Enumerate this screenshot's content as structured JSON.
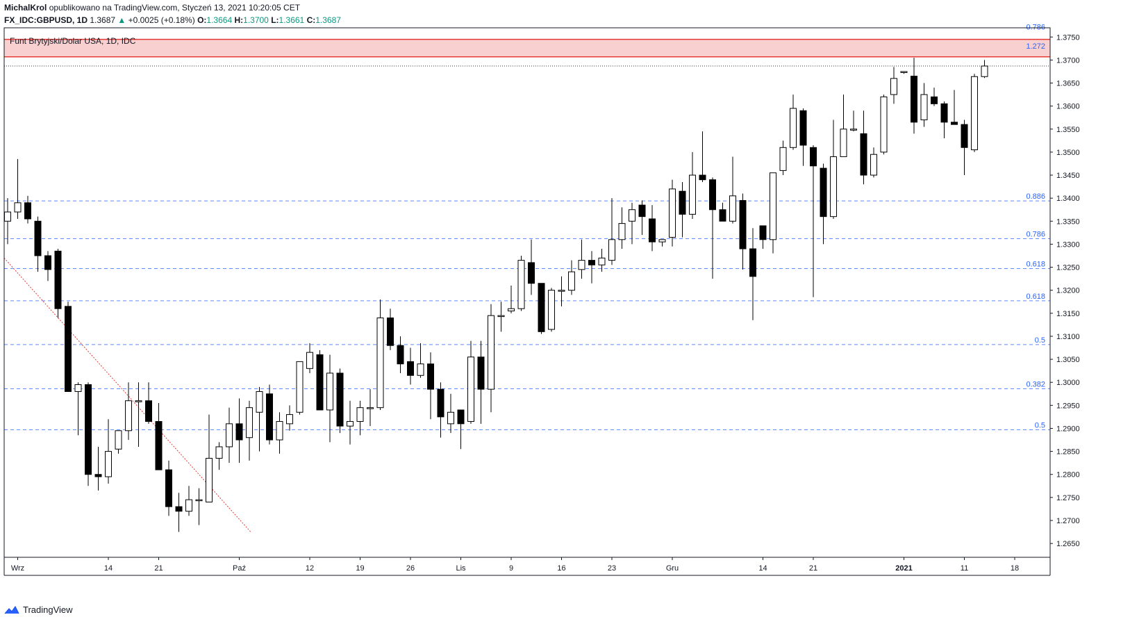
{
  "header": {
    "author": "MichalKrol",
    "published_text": "opublikowano na TradingView.com, Styczeń 13, 2021 10:20:05 CET",
    "symbol": "FX_IDC:GBPUSD, 1D",
    "last": "1.3687",
    "change_arrow": "▲",
    "change": "+0.0025 (+0.18%)",
    "o_label": "O:",
    "o_value": "1.3664",
    "h_label": "H:",
    "h_value": "1.3700",
    "l_label": "L:",
    "l_value": "1.3661",
    "c_label": "C:",
    "c_value": "1.3687"
  },
  "footer": {
    "brand": "TradingView"
  },
  "colors": {
    "up_body": "#ffffff",
    "down_body": "#000000",
    "fib_line": "#2962ff",
    "fib_label": "#2962ff",
    "zone_fill": "#f8d0d0",
    "zone_border": "#e53935",
    "trendline": "#e53935"
  },
  "chart_data": {
    "type": "candlestick",
    "title": "Funt Brytyjski/Dolar USA, 1D, IDC",
    "ylim": [
      1.262,
      1.377
    ],
    "y_ticks": [
      "1.3750",
      "1.3700",
      "1.3650",
      "1.3600",
      "1.3550",
      "1.3500",
      "1.3450",
      "1.3400",
      "1.3350",
      "1.3300",
      "1.3250",
      "1.3200",
      "1.3150",
      "1.3100",
      "1.3050",
      "1.3000",
      "1.2950",
      "1.2900",
      "1.2850",
      "1.2800",
      "1.2750",
      "1.2700",
      "1.2650"
    ],
    "x_ticks": [
      {
        "label": "Wrz",
        "bar": 1
      },
      {
        "label": "14",
        "bar": 10
      },
      {
        "label": "21",
        "bar": 15
      },
      {
        "label": "Paź",
        "bar": 23
      },
      {
        "label": "12",
        "bar": 30
      },
      {
        "label": "19",
        "bar": 35
      },
      {
        "label": "26",
        "bar": 40
      },
      {
        "label": "Lis",
        "bar": 45
      },
      {
        "label": "9",
        "bar": 50
      },
      {
        "label": "16",
        "bar": 55
      },
      {
        "label": "23",
        "bar": 60
      },
      {
        "label": "Gru",
        "bar": 66
      },
      {
        "label": "14",
        "bar": 75
      },
      {
        "label": "21",
        "bar": 80
      },
      {
        "label": "2021",
        "bar": 89
      },
      {
        "label": "11",
        "bar": 95
      },
      {
        "label": "18",
        "bar": 100
      }
    ],
    "fib_levels": [
      {
        "label": "0.786",
        "price": 1.3762
      },
      {
        "label": "1.272",
        "price": 1.372
      },
      {
        "label": "0.886",
        "price": 1.3394
      },
      {
        "label": "0.786",
        "price": 1.3312
      },
      {
        "label": "0.618",
        "price": 1.3247
      },
      {
        "label": "0.618",
        "price": 1.3177
      },
      {
        "label": "0.5",
        "price": 1.3082
      },
      {
        "label": "0.382",
        "price": 1.2986
      },
      {
        "label": "0.5",
        "price": 1.2897
      }
    ],
    "resistance_zone": {
      "top": 1.3745,
      "bottom": 1.3707
    },
    "last_price": 1.3687,
    "trendline": {
      "from_bar": 0,
      "from_price": 1.327,
      "to_bar": 24,
      "to_price": 1.2675
    },
    "candles": [
      {
        "o": 1.335,
        "h": 1.34,
        "l": 1.33,
        "c": 1.337
      },
      {
        "o": 1.337,
        "h": 1.3485,
        "l": 1.3355,
        "c": 1.339
      },
      {
        "o": 1.339,
        "h": 1.3405,
        "l": 1.3345,
        "c": 1.3355
      },
      {
        "o": 1.335,
        "h": 1.336,
        "l": 1.324,
        "c": 1.3275
      },
      {
        "o": 1.3275,
        "h": 1.3285,
        "l": 1.322,
        "c": 1.3245
      },
      {
        "o": 1.3285,
        "h": 1.329,
        "l": 1.314,
        "c": 1.316
      },
      {
        "o": 1.3165,
        "h": 1.3175,
        "l": 1.298,
        "c": 1.298
      },
      {
        "o": 1.298,
        "h": 1.3,
        "l": 1.2885,
        "c": 1.2995
      },
      {
        "o": 1.2995,
        "h": 1.3,
        "l": 1.2775,
        "c": 1.28
      },
      {
        "o": 1.28,
        "h": 1.286,
        "l": 1.2765,
        "c": 1.2795
      },
      {
        "o": 1.2795,
        "h": 1.292,
        "l": 1.278,
        "c": 1.285
      },
      {
        "o": 1.2855,
        "h": 1.2895,
        "l": 1.2845,
        "c": 1.2895
      },
      {
        "o": 1.2895,
        "h": 1.3,
        "l": 1.2875,
        "c": 1.296
      },
      {
        "o": 1.296,
        "h": 1.3,
        "l": 1.286,
        "c": 1.296
      },
      {
        "o": 1.296,
        "h": 1.3,
        "l": 1.291,
        "c": 1.2915
      },
      {
        "o": 1.2915,
        "h": 1.2955,
        "l": 1.281,
        "c": 1.281
      },
      {
        "o": 1.281,
        "h": 1.283,
        "l": 1.271,
        "c": 1.273
      },
      {
        "o": 1.273,
        "h": 1.276,
        "l": 1.2675,
        "c": 1.272
      },
      {
        "o": 1.272,
        "h": 1.2775,
        "l": 1.271,
        "c": 1.2745
      },
      {
        "o": 1.2745,
        "h": 1.277,
        "l": 1.269,
        "c": 1.2745
      },
      {
        "o": 1.274,
        "h": 1.293,
        "l": 1.2745,
        "c": 1.2835
      },
      {
        "o": 1.2835,
        "h": 1.287,
        "l": 1.281,
        "c": 1.286
      },
      {
        "o": 1.286,
        "h": 1.2945,
        "l": 1.2825,
        "c": 1.291
      },
      {
        "o": 1.291,
        "h": 1.2965,
        "l": 1.2825,
        "c": 1.2875
      },
      {
        "o": 1.288,
        "h": 1.296,
        "l": 1.283,
        "c": 1.2945
      },
      {
        "o": 1.2935,
        "h": 1.299,
        "l": 1.285,
        "c": 1.298
      },
      {
        "o": 1.2975,
        "h": 1.2995,
        "l": 1.2865,
        "c": 1.2875
      },
      {
        "o": 1.2875,
        "h": 1.2935,
        "l": 1.2845,
        "c": 1.2915
      },
      {
        "o": 1.291,
        "h": 1.295,
        "l": 1.2895,
        "c": 1.293
      },
      {
        "o": 1.2935,
        "h": 1.3045,
        "l": 1.293,
        "c": 1.3045
      },
      {
        "o": 1.303,
        "h": 1.3085,
        "l": 1.302,
        "c": 1.3065
      },
      {
        "o": 1.306,
        "h": 1.307,
        "l": 1.294,
        "c": 1.294
      },
      {
        "o": 1.294,
        "h": 1.306,
        "l": 1.287,
        "c": 1.302
      },
      {
        "o": 1.302,
        "h": 1.303,
        "l": 1.289,
        "c": 1.2905
      },
      {
        "o": 1.2905,
        "h": 1.296,
        "l": 1.2865,
        "c": 1.2915
      },
      {
        "o": 1.2915,
        "h": 1.296,
        "l": 1.2885,
        "c": 1.2945
      },
      {
        "o": 1.2945,
        "h": 1.2985,
        "l": 1.2905,
        "c": 1.2945
      },
      {
        "o": 1.2945,
        "h": 1.318,
        "l": 1.294,
        "c": 1.314
      },
      {
        "o": 1.314,
        "h": 1.316,
        "l": 1.307,
        "c": 1.308
      },
      {
        "o": 1.308,
        "h": 1.31,
        "l": 1.302,
        "c": 1.304
      },
      {
        "o": 1.3045,
        "h": 1.3075,
        "l": 1.2995,
        "c": 1.3015
      },
      {
        "o": 1.3015,
        "h": 1.3085,
        "l": 1.301,
        "c": 1.304
      },
      {
        "o": 1.304,
        "h": 1.3065,
        "l": 1.292,
        "c": 1.2985
      },
      {
        "o": 1.2985,
        "h": 1.3,
        "l": 1.288,
        "c": 1.2925
      },
      {
        "o": 1.291,
        "h": 1.2975,
        "l": 1.289,
        "c": 1.2935
      },
      {
        "o": 1.294,
        "h": 1.294,
        "l": 1.2855,
        "c": 1.291
      },
      {
        "o": 1.2915,
        "h": 1.309,
        "l": 1.291,
        "c": 1.3055
      },
      {
        "o": 1.3055,
        "h": 1.309,
        "l": 1.291,
        "c": 1.2985
      },
      {
        "o": 1.2985,
        "h": 1.317,
        "l": 1.2935,
        "c": 1.3145
      },
      {
        "o": 1.3145,
        "h": 1.3175,
        "l": 1.311,
        "c": 1.3145
      },
      {
        "o": 1.3155,
        "h": 1.321,
        "l": 1.315,
        "c": 1.316
      },
      {
        "o": 1.316,
        "h": 1.3275,
        "l": 1.3155,
        "c": 1.3265
      },
      {
        "o": 1.326,
        "h": 1.331,
        "l": 1.319,
        "c": 1.3215
      },
      {
        "o": 1.3215,
        "h": 1.3215,
        "l": 1.3105,
        "c": 1.311
      },
      {
        "o": 1.3115,
        "h": 1.3205,
        "l": 1.311,
        "c": 1.32
      },
      {
        "o": 1.32,
        "h": 1.323,
        "l": 1.3165,
        "c": 1.32
      },
      {
        "o": 1.32,
        "h": 1.3265,
        "l": 1.319,
        "c": 1.324
      },
      {
        "o": 1.3245,
        "h": 1.331,
        "l": 1.3225,
        "c": 1.3265
      },
      {
        "o": 1.3265,
        "h": 1.3285,
        "l": 1.3215,
        "c": 1.3255
      },
      {
        "o": 1.3255,
        "h": 1.329,
        "l": 1.324,
        "c": 1.327
      },
      {
        "o": 1.3265,
        "h": 1.34,
        "l": 1.3255,
        "c": 1.331
      },
      {
        "o": 1.331,
        "h": 1.338,
        "l": 1.329,
        "c": 1.3345
      },
      {
        "o": 1.335,
        "h": 1.339,
        "l": 1.33,
        "c": 1.3375
      },
      {
        "o": 1.3385,
        "h": 1.3395,
        "l": 1.332,
        "c": 1.336
      },
      {
        "o": 1.3355,
        "h": 1.3385,
        "l": 1.3285,
        "c": 1.3305
      },
      {
        "o": 1.3305,
        "h": 1.331,
        "l": 1.3295,
        "c": 1.331
      },
      {
        "o": 1.3315,
        "h": 1.344,
        "l": 1.3295,
        "c": 1.342
      },
      {
        "o": 1.3415,
        "h": 1.3435,
        "l": 1.3315,
        "c": 1.3365
      },
      {
        "o": 1.3365,
        "h": 1.35,
        "l": 1.3355,
        "c": 1.345
      },
      {
        "o": 1.345,
        "h": 1.3545,
        "l": 1.3435,
        "c": 1.344
      },
      {
        "o": 1.344,
        "h": 1.3445,
        "l": 1.3225,
        "c": 1.3375
      },
      {
        "o": 1.3375,
        "h": 1.339,
        "l": 1.335,
        "c": 1.335
      },
      {
        "o": 1.335,
        "h": 1.349,
        "l": 1.3345,
        "c": 1.3405
      },
      {
        "o": 1.3395,
        "h": 1.341,
        "l": 1.3245,
        "c": 1.329
      },
      {
        "o": 1.329,
        "h": 1.3335,
        "l": 1.3135,
        "c": 1.323
      },
      {
        "o": 1.334,
        "h": 1.334,
        "l": 1.329,
        "c": 1.331
      },
      {
        "o": 1.331,
        "h": 1.3455,
        "l": 1.328,
        "c": 1.3455
      },
      {
        "o": 1.346,
        "h": 1.3525,
        "l": 1.345,
        "c": 1.351
      },
      {
        "o": 1.351,
        "h": 1.3625,
        "l": 1.3505,
        "c": 1.3595
      },
      {
        "o": 1.359,
        "h": 1.3595,
        "l": 1.347,
        "c": 1.3515
      },
      {
        "o": 1.351,
        "h": 1.3515,
        "l": 1.3185,
        "c": 1.347
      },
      {
        "o": 1.3465,
        "h": 1.3475,
        "l": 1.33,
        "c": 1.336
      },
      {
        "o": 1.336,
        "h": 1.357,
        "l": 1.3355,
        "c": 1.349
      },
      {
        "o": 1.349,
        "h": 1.3625,
        "l": 1.349,
        "c": 1.355
      },
      {
        "o": 1.355,
        "h": 1.359,
        "l": 1.3545,
        "c": 1.355
      },
      {
        "o": 1.354,
        "h": 1.359,
        "l": 1.343,
        "c": 1.345
      },
      {
        "o": 1.345,
        "h": 1.351,
        "l": 1.3445,
        "c": 1.3495
      },
      {
        "o": 1.35,
        "h": 1.3625,
        "l": 1.3495,
        "c": 1.362
      },
      {
        "o": 1.3625,
        "h": 1.3685,
        "l": 1.3605,
        "c": 1.366
      },
      {
        "o": 1.3675,
        "h": 1.3675,
        "l": 1.367,
        "c": 1.3675
      },
      {
        "o": 1.3665,
        "h": 1.3705,
        "l": 1.354,
        "c": 1.3565
      },
      {
        "o": 1.357,
        "h": 1.365,
        "l": 1.3555,
        "c": 1.3625
      },
      {
        "o": 1.362,
        "h": 1.364,
        "l": 1.36,
        "c": 1.3605
      },
      {
        "o": 1.3605,
        "h": 1.361,
        "l": 1.353,
        "c": 1.3565
      },
      {
        "o": 1.3565,
        "h": 1.3635,
        "l": 1.356,
        "c": 1.356
      },
      {
        "o": 1.356,
        "h": 1.357,
        "l": 1.345,
        "c": 1.351
      },
      {
        "o": 1.3505,
        "h": 1.367,
        "l": 1.35,
        "c": 1.3664
      },
      {
        "o": 1.3664,
        "h": 1.37,
        "l": 1.3661,
        "c": 1.3687
      }
    ]
  }
}
